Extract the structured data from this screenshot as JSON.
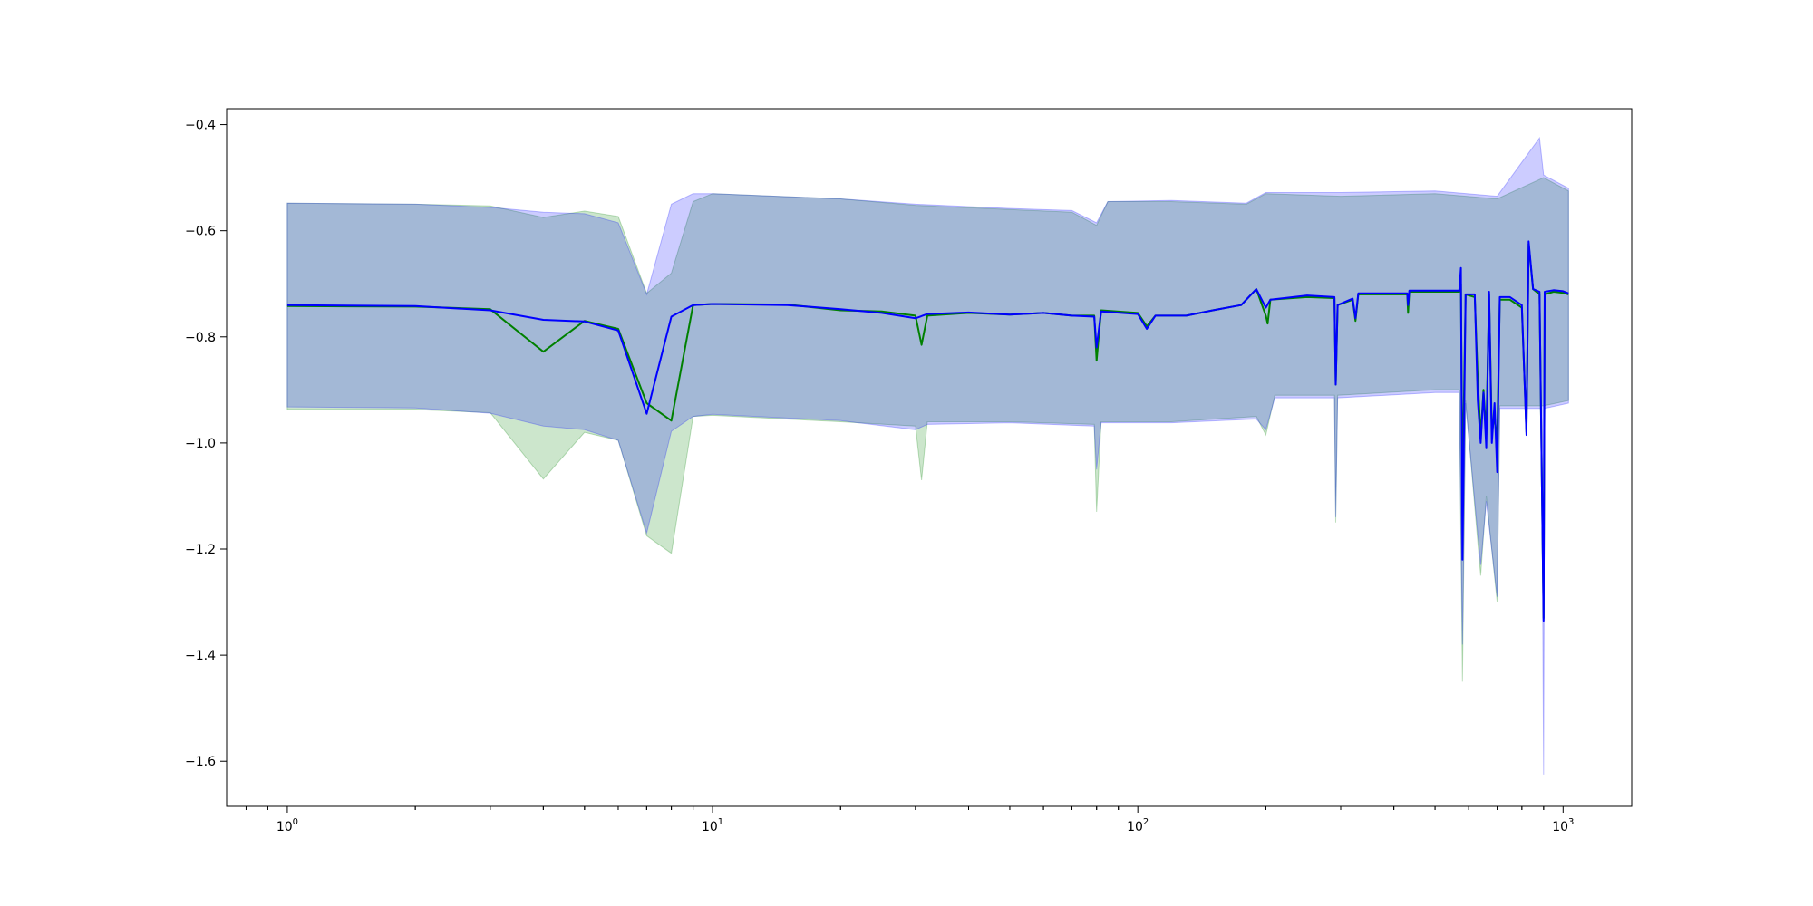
{
  "chart_data": {
    "type": "line",
    "title": "",
    "xlabel": "",
    "ylabel": "",
    "xscale": "log",
    "xlim": [
      0.72,
      1450
    ],
    "ylim": [
      -1.685,
      -0.37
    ],
    "grid": false,
    "legend": "none",
    "xticks": [
      {
        "value": 1,
        "base": "10",
        "exp": "0"
      },
      {
        "value": 10,
        "base": "10",
        "exp": "1"
      },
      {
        "value": 100,
        "base": "10",
        "exp": "2"
      },
      {
        "value": 1000,
        "base": "10",
        "exp": "3"
      }
    ],
    "yticks": [
      {
        "value": -0.4,
        "label": "−0.4"
      },
      {
        "value": -0.6,
        "label": "−0.6"
      },
      {
        "value": -0.8,
        "label": "−0.8"
      },
      {
        "value": -1.0,
        "label": "−1.0"
      },
      {
        "value": -1.2,
        "label": "−1.2"
      },
      {
        "value": -1.4,
        "label": "−1.4"
      },
      {
        "value": -1.6,
        "label": "−1.6"
      }
    ],
    "series": [
      {
        "color": "#008000",
        "band_color": "#008000",
        "band_opacity": 0.2,
        "mean": [
          [
            1,
            -0.742
          ],
          [
            2,
            -0.743
          ],
          [
            3,
            -0.748
          ],
          [
            4,
            -0.828
          ],
          [
            5,
            -0.77
          ],
          [
            6,
            -0.785
          ],
          [
            7,
            -0.925
          ],
          [
            8,
            -0.958
          ],
          [
            9,
            -0.74
          ],
          [
            10,
            -0.738
          ],
          [
            15,
            -0.739
          ],
          [
            20,
            -0.75
          ],
          [
            25,
            -0.752
          ],
          [
            30,
            -0.76
          ],
          [
            31,
            -0.815
          ],
          [
            32,
            -0.76
          ],
          [
            40,
            -0.755
          ],
          [
            50,
            -0.758
          ],
          [
            60,
            -0.755
          ],
          [
            70,
            -0.76
          ],
          [
            79,
            -0.76
          ],
          [
            80,
            -0.845
          ],
          [
            82,
            -0.75
          ],
          [
            100,
            -0.755
          ],
          [
            105,
            -0.78
          ],
          [
            110,
            -0.76
          ],
          [
            130,
            -0.76
          ],
          [
            150,
            -0.75
          ],
          [
            175,
            -0.74
          ],
          [
            190,
            -0.71
          ],
          [
            200,
            -0.76
          ],
          [
            202,
            -0.775
          ],
          [
            205,
            -0.73
          ],
          [
            250,
            -0.725
          ],
          [
            290,
            -0.727
          ],
          [
            292,
            -0.89
          ],
          [
            295,
            -0.74
          ],
          [
            320,
            -0.73
          ],
          [
            325,
            -0.77
          ],
          [
            330,
            -0.72
          ],
          [
            430,
            -0.72
          ],
          [
            432,
            -0.755
          ],
          [
            435,
            -0.715
          ],
          [
            570,
            -0.715
          ],
          [
            575,
            -0.7
          ],
          [
            580,
            -1.09
          ],
          [
            590,
            -0.72
          ],
          [
            620,
            -0.725
          ],
          [
            630,
            -0.88
          ],
          [
            640,
            -0.99
          ],
          [
            650,
            -0.9
          ],
          [
            660,
            -0.985
          ],
          [
            670,
            -0.72
          ],
          [
            680,
            -0.98
          ],
          [
            690,
            -0.95
          ],
          [
            700,
            -1.0
          ],
          [
            710,
            -0.73
          ],
          [
            750,
            -0.73
          ],
          [
            800,
            -0.745
          ],
          [
            820,
            -0.98
          ],
          [
            830,
            -0.625
          ],
          [
            850,
            -0.71
          ],
          [
            880,
            -0.72
          ],
          [
            900,
            -1.33
          ],
          [
            905,
            -0.72
          ],
          [
            950,
            -0.715
          ],
          [
            1000,
            -0.717
          ],
          [
            1030,
            -0.72
          ]
        ],
        "upper": [
          [
            1,
            -0.548
          ],
          [
            2,
            -0.55
          ],
          [
            3,
            -0.553
          ],
          [
            4,
            -0.575
          ],
          [
            5,
            -0.563
          ],
          [
            6,
            -0.573
          ],
          [
            7,
            -0.718
          ],
          [
            8,
            -0.68
          ],
          [
            9,
            -0.545
          ],
          [
            10,
            -0.53
          ],
          [
            20,
            -0.54
          ],
          [
            30,
            -0.552
          ],
          [
            50,
            -0.56
          ],
          [
            70,
            -0.565
          ],
          [
            80,
            -0.59
          ],
          [
            85,
            -0.545
          ],
          [
            120,
            -0.545
          ],
          [
            180,
            -0.55
          ],
          [
            200,
            -0.53
          ],
          [
            300,
            -0.535
          ],
          [
            500,
            -0.53
          ],
          [
            700,
            -0.54
          ],
          [
            900,
            -0.5
          ],
          [
            1030,
            -0.525
          ]
        ],
        "lower": [
          [
            1,
            -0.937
          ],
          [
            2,
            -0.937
          ],
          [
            3,
            -0.943
          ],
          [
            4,
            -1.068
          ],
          [
            5,
            -0.98
          ],
          [
            6,
            -0.995
          ],
          [
            7,
            -1.175
          ],
          [
            8,
            -1.208
          ],
          [
            9,
            -0.95
          ],
          [
            10,
            -0.948
          ],
          [
            20,
            -0.96
          ],
          [
            30,
            -0.968
          ],
          [
            31,
            -1.07
          ],
          [
            32,
            -0.96
          ],
          [
            50,
            -0.96
          ],
          [
            79,
            -0.965
          ],
          [
            80,
            -1.13
          ],
          [
            82,
            -0.96
          ],
          [
            120,
            -0.96
          ],
          [
            190,
            -0.95
          ],
          [
            200,
            -0.985
          ],
          [
            210,
            -0.91
          ],
          [
            290,
            -0.91
          ],
          [
            292,
            -1.15
          ],
          [
            295,
            -0.91
          ],
          [
            500,
            -0.9
          ],
          [
            570,
            -0.9
          ],
          [
            580,
            -1.45
          ],
          [
            590,
            -0.92
          ],
          [
            640,
            -1.25
          ],
          [
            660,
            -1.1
          ],
          [
            700,
            -1.3
          ],
          [
            710,
            -0.93
          ],
          [
            900,
            -0.93
          ],
          [
            1030,
            -0.92
          ]
        ]
      },
      {
        "color": "#0000ff",
        "band_color": "#0000ff",
        "band_opacity": 0.2,
        "mean": [
          [
            1,
            -0.74
          ],
          [
            2,
            -0.742
          ],
          [
            3,
            -0.75
          ],
          [
            4,
            -0.768
          ],
          [
            5,
            -0.771
          ],
          [
            6,
            -0.788
          ],
          [
            7,
            -0.945
          ],
          [
            8,
            -0.762
          ],
          [
            9,
            -0.74
          ],
          [
            10,
            -0.738
          ],
          [
            15,
            -0.74
          ],
          [
            20,
            -0.748
          ],
          [
            25,
            -0.755
          ],
          [
            30,
            -0.765
          ],
          [
            32,
            -0.757
          ],
          [
            40,
            -0.754
          ],
          [
            50,
            -0.758
          ],
          [
            60,
            -0.755
          ],
          [
            70,
            -0.76
          ],
          [
            79,
            -0.762
          ],
          [
            80,
            -0.82
          ],
          [
            82,
            -0.752
          ],
          [
            100,
            -0.757
          ],
          [
            105,
            -0.785
          ],
          [
            110,
            -0.76
          ],
          [
            130,
            -0.76
          ],
          [
            150,
            -0.75
          ],
          [
            175,
            -0.74
          ],
          [
            190,
            -0.71
          ],
          [
            200,
            -0.745
          ],
          [
            205,
            -0.73
          ],
          [
            250,
            -0.722
          ],
          [
            290,
            -0.725
          ],
          [
            292,
            -0.89
          ],
          [
            295,
            -0.74
          ],
          [
            320,
            -0.728
          ],
          [
            325,
            -0.765
          ],
          [
            330,
            -0.718
          ],
          [
            430,
            -0.718
          ],
          [
            432,
            -0.74
          ],
          [
            435,
            -0.713
          ],
          [
            570,
            -0.713
          ],
          [
            575,
            -0.67
          ],
          [
            580,
            -1.22
          ],
          [
            590,
            -0.72
          ],
          [
            620,
            -0.72
          ],
          [
            630,
            -0.92
          ],
          [
            640,
            -1.0
          ],
          [
            650,
            -0.905
          ],
          [
            660,
            -1.01
          ],
          [
            670,
            -0.715
          ],
          [
            680,
            -1.0
          ],
          [
            690,
            -0.925
          ],
          [
            700,
            -1.055
          ],
          [
            710,
            -0.725
          ],
          [
            750,
            -0.725
          ],
          [
            800,
            -0.74
          ],
          [
            820,
            -0.985
          ],
          [
            830,
            -0.62
          ],
          [
            850,
            -0.71
          ],
          [
            880,
            -0.715
          ],
          [
            900,
            -1.335
          ],
          [
            905,
            -0.715
          ],
          [
            950,
            -0.712
          ],
          [
            1000,
            -0.714
          ],
          [
            1030,
            -0.718
          ]
        ],
        "upper": [
          [
            1,
            -0.548
          ],
          [
            2,
            -0.55
          ],
          [
            3,
            -0.556
          ],
          [
            4,
            -0.565
          ],
          [
            5,
            -0.568
          ],
          [
            6,
            -0.585
          ],
          [
            7,
            -0.72
          ],
          [
            8,
            -0.55
          ],
          [
            9,
            -0.53
          ],
          [
            10,
            -0.53
          ],
          [
            20,
            -0.54
          ],
          [
            30,
            -0.55
          ],
          [
            50,
            -0.558
          ],
          [
            70,
            -0.562
          ],
          [
            80,
            -0.585
          ],
          [
            85,
            -0.545
          ],
          [
            120,
            -0.543
          ],
          [
            180,
            -0.548
          ],
          [
            200,
            -0.528
          ],
          [
            300,
            -0.528
          ],
          [
            500,
            -0.525
          ],
          [
            700,
            -0.535
          ],
          [
            880,
            -0.425
          ],
          [
            900,
            -0.495
          ],
          [
            1030,
            -0.52
          ]
        ],
        "lower": [
          [
            1,
            -0.932
          ],
          [
            2,
            -0.934
          ],
          [
            3,
            -0.944
          ],
          [
            4,
            -0.968
          ],
          [
            5,
            -0.975
          ],
          [
            6,
            -0.995
          ],
          [
            7,
            -1.17
          ],
          [
            8,
            -0.978
          ],
          [
            9,
            -0.95
          ],
          [
            10,
            -0.946
          ],
          [
            20,
            -0.958
          ],
          [
            30,
            -0.975
          ],
          [
            32,
            -0.965
          ],
          [
            50,
            -0.962
          ],
          [
            79,
            -0.968
          ],
          [
            80,
            -1.05
          ],
          [
            82,
            -0.962
          ],
          [
            120,
            -0.962
          ],
          [
            190,
            -0.955
          ],
          [
            200,
            -0.975
          ],
          [
            210,
            -0.915
          ],
          [
            290,
            -0.915
          ],
          [
            292,
            -1.14
          ],
          [
            295,
            -0.915
          ],
          [
            500,
            -0.905
          ],
          [
            570,
            -0.905
          ],
          [
            580,
            -1.38
          ],
          [
            590,
            -0.925
          ],
          [
            640,
            -1.23
          ],
          [
            660,
            -1.11
          ],
          [
            700,
            -1.29
          ],
          [
            710,
            -0.935
          ],
          [
            890,
            -0.935
          ],
          [
            900,
            -1.625
          ],
          [
            905,
            -0.935
          ],
          [
            1030,
            -0.925
          ]
        ]
      }
    ]
  }
}
